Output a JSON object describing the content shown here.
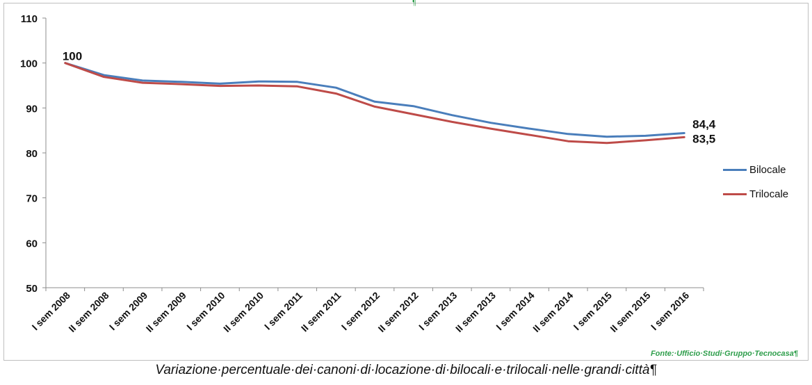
{
  "chart_data": {
    "type": "line",
    "categories": [
      "I sem 2008",
      "II sem 2008",
      "I sem 2009",
      "II sem 2009",
      "I sem 2010",
      "II sem 2010",
      "I sem 2011",
      "II sem 2011",
      "I sem 2012",
      "II sem 2012",
      "I sem 2013",
      "II sem 2013",
      "I sem 2014",
      "II sem 2014",
      "I sem 2015",
      "II sem 2015",
      "I sem 2016"
    ],
    "series": [
      {
        "name": "Bilocale",
        "color": "#4a7ebb",
        "values": [
          100,
          97.3,
          96.1,
          95.8,
          95.4,
          95.9,
          95.8,
          94.5,
          91.4,
          90.4,
          88.4,
          86.7,
          85.4,
          84.2,
          83.6,
          83.8,
          84.4
        ]
      },
      {
        "name": "Trilocale",
        "color": "#be4b48",
        "values": [
          100,
          96.9,
          95.6,
          95.3,
          94.9,
          95.0,
          94.8,
          93.2,
          90.3,
          88.6,
          86.9,
          85.4,
          84.0,
          82.6,
          82.2,
          82.8,
          83.5
        ]
      }
    ],
    "ylim": [
      50,
      110
    ],
    "yticks": [
      "50",
      "60",
      "70",
      "80",
      "90",
      "100",
      "110"
    ],
    "annotations": [
      {
        "text": "100",
        "series": 0,
        "index": 0
      },
      {
        "text": "84,4",
        "series": 0,
        "index": 16
      },
      {
        "text": "83,5",
        "series": 1,
        "index": 16
      }
    ],
    "legend": "right",
    "grid": false
  },
  "caption": "Variazione·percentuale·dei·canoni·di·locazione·di·bilocali·e·trilocali·nelle·grandi·città¶",
  "source": "Fonte:·Ufficio·Studi·Gruppo·Tecnocasa¶",
  "top_mark": "¶"
}
